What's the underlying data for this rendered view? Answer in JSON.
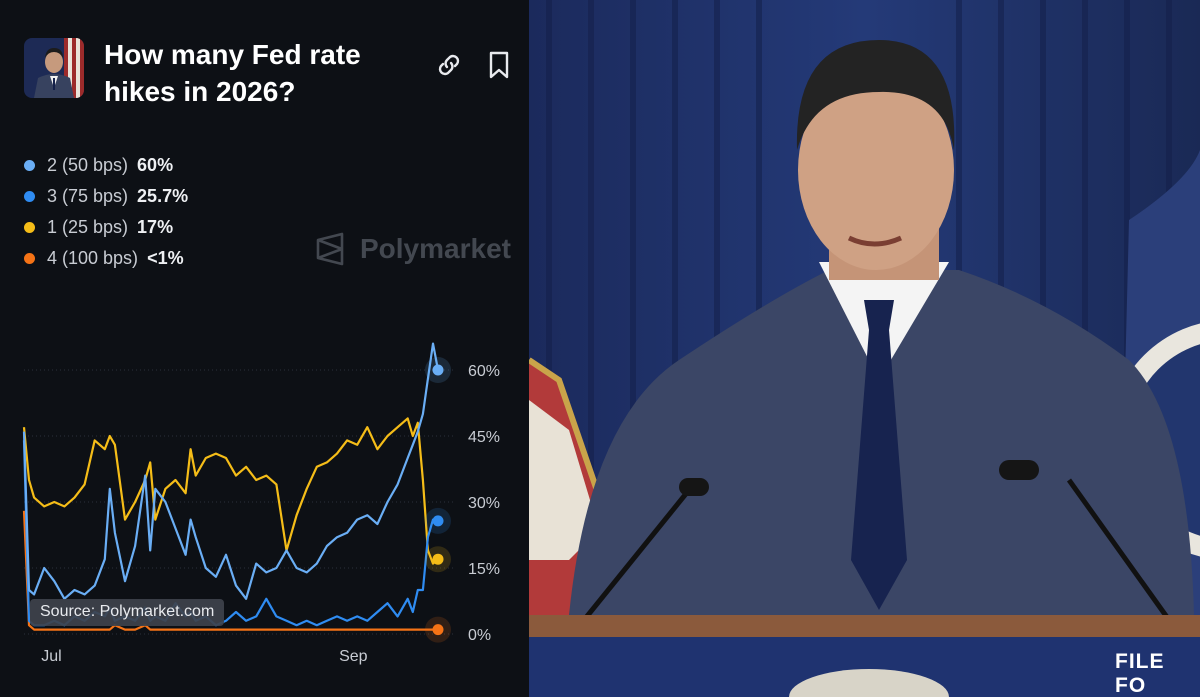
{
  "header": {
    "title": "How many Fed rate hikes in 2026?"
  },
  "legend": [
    {
      "name": "2 (50 bps)",
      "value": "60%",
      "color": "#6aaef5"
    },
    {
      "name": "3 (75 bps)",
      "value": "25.7%",
      "color": "#2f8cf2"
    },
    {
      "name": "1 (25 bps)",
      "value": "17%",
      "color": "#f5bd18"
    },
    {
      "name": "4 (100 bps)",
      "value": "<1%",
      "color": "#f57316"
    }
  ],
  "watermark": "Polymarket",
  "source": "Source: Polymarket.com",
  "right_caption": "FILE FO",
  "chart_data": {
    "type": "line",
    "title": "How many Fed rate hikes in 2026?",
    "ylim": [
      0,
      66
    ],
    "yticks": [
      "60%",
      "45%",
      "30%",
      "15%",
      "0%"
    ],
    "ytick_values": [
      60,
      45,
      30,
      15,
      0
    ],
    "xticks": [
      "Jul",
      "Sep"
    ],
    "xtick_values": [
      5,
      64
    ],
    "xlim": [
      0,
      84
    ],
    "grid": true,
    "series": [
      {
        "name": "1 (25 bps)",
        "color": "#f5bd18",
        "x": [
          0,
          1,
          2,
          4,
          6,
          8,
          10,
          12,
          14,
          16,
          17,
          18,
          20,
          22,
          24,
          25,
          26,
          28,
          30,
          32,
          33,
          34,
          36,
          38,
          40,
          42,
          44,
          46,
          48,
          50,
          52,
          54,
          56,
          58,
          60,
          62,
          64,
          66,
          68,
          70,
          72,
          74,
          76,
          77,
          78,
          79,
          80,
          81,
          82
        ],
        "y": [
          47,
          35,
          31,
          29,
          30,
          29,
          31,
          34,
          44,
          42,
          45,
          43,
          26,
          30,
          35,
          39,
          26,
          33,
          35,
          32,
          42,
          36,
          40,
          41,
          40,
          36,
          38,
          35,
          36,
          34,
          19,
          27,
          33,
          38,
          39,
          41,
          44,
          43,
          47,
          42,
          45,
          47,
          49,
          45,
          48,
          35,
          19,
          16,
          17
        ]
      },
      {
        "name": "2 (50 bps)",
        "color": "#6aaef5",
        "x": [
          0,
          1,
          2,
          4,
          6,
          8,
          10,
          12,
          14,
          16,
          17,
          18,
          20,
          22,
          24,
          25,
          26,
          28,
          30,
          32,
          33,
          34,
          36,
          38,
          40,
          42,
          44,
          46,
          48,
          50,
          52,
          54,
          56,
          58,
          60,
          62,
          64,
          66,
          68,
          70,
          72,
          74,
          76,
          77,
          78,
          79,
          80,
          81,
          82
        ],
        "y": [
          46,
          10,
          9,
          15,
          12,
          8,
          10,
          9,
          11,
          17,
          33,
          23,
          12,
          20,
          36,
          19,
          33,
          30,
          24,
          18,
          26,
          22,
          15,
          13,
          18,
          11,
          8,
          16,
          14,
          15,
          19,
          15,
          14,
          16,
          20,
          22,
          23,
          26,
          27,
          25,
          30,
          34,
          40,
          43,
          46,
          50,
          58,
          66,
          60
        ]
      },
      {
        "name": "3 (75 bps)",
        "color": "#2f8cf2",
        "x": [
          0,
          1,
          2,
          4,
          6,
          8,
          10,
          12,
          14,
          16,
          17,
          18,
          20,
          22,
          24,
          25,
          26,
          28,
          30,
          32,
          33,
          34,
          36,
          38,
          40,
          42,
          44,
          46,
          48,
          50,
          52,
          54,
          56,
          58,
          60,
          62,
          64,
          66,
          68,
          70,
          72,
          74,
          76,
          77,
          78,
          79,
          80,
          81,
          82
        ],
        "y": [
          44,
          3,
          2,
          2,
          3,
          2,
          4,
          3,
          5,
          4,
          6,
          3,
          4,
          3,
          6,
          3,
          4,
          3,
          7,
          4,
          5,
          3,
          4,
          2,
          3,
          5,
          3,
          4,
          8,
          4,
          3,
          2,
          3,
          2,
          3,
          4,
          3,
          4,
          3,
          5,
          7,
          4,
          8,
          5,
          10,
          10,
          22,
          26,
          25.7
        ]
      },
      {
        "name": "4 (100 bps)",
        "color": "#f57316",
        "x": [
          0,
          1,
          2,
          4,
          6,
          8,
          10,
          12,
          14,
          16,
          17,
          18,
          20,
          22,
          24,
          25,
          26,
          28,
          30,
          32,
          33,
          34,
          36,
          38,
          40,
          42,
          44,
          46,
          48,
          50,
          52,
          54,
          56,
          58,
          60,
          62,
          64,
          66,
          68,
          70,
          72,
          74,
          76,
          77,
          78,
          79,
          80,
          81,
          82
        ],
        "y": [
          28,
          2,
          1,
          1,
          1,
          1,
          1,
          1,
          1,
          1,
          1,
          2,
          1,
          1,
          2,
          1,
          1,
          1,
          1,
          1,
          1,
          1,
          1,
          1,
          1,
          1,
          1,
          1,
          1,
          1,
          1,
          1,
          1,
          1,
          1,
          1,
          1,
          1,
          1,
          1,
          1,
          1,
          1,
          1,
          1,
          1,
          1,
          1,
          1
        ]
      }
    ]
  }
}
